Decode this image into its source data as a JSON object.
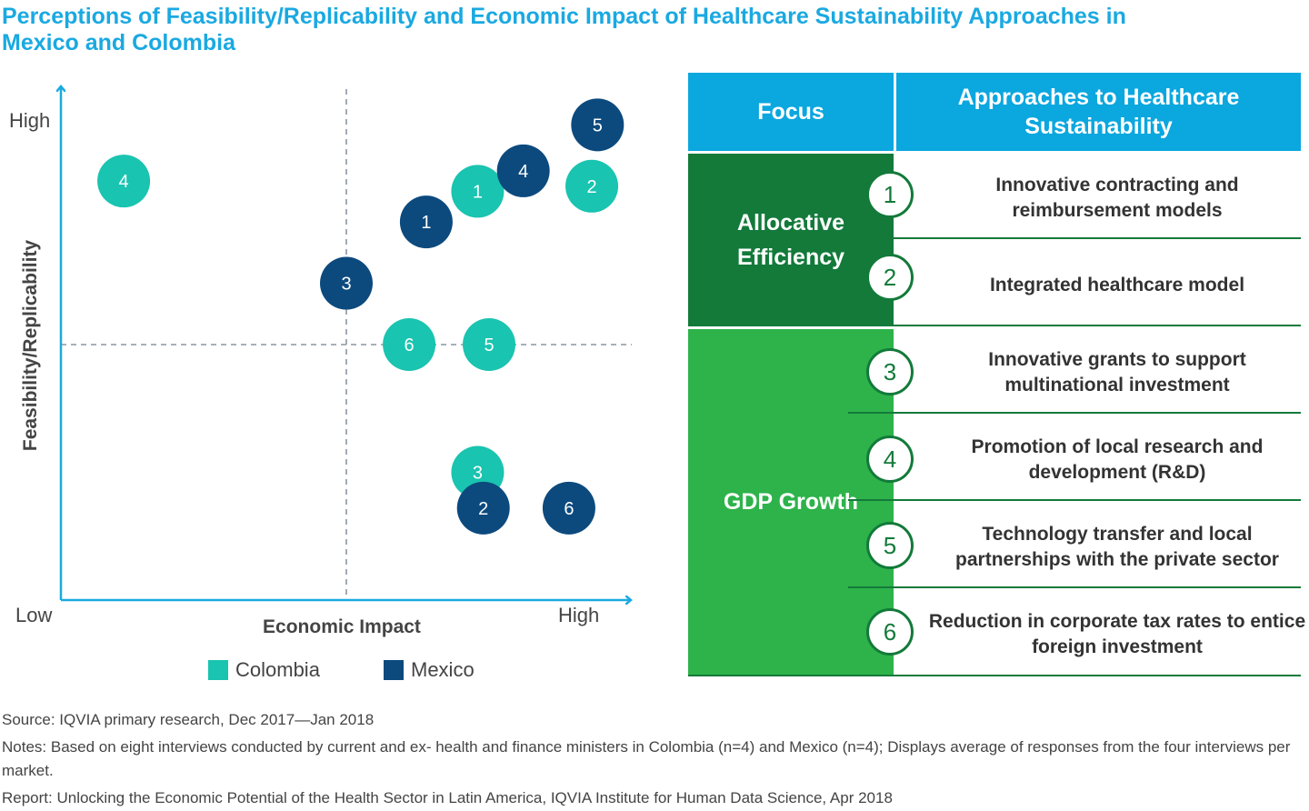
{
  "title": "Perceptions of Feasibility/Replicability and Economic Impact of Healthcare Sustainability Approaches in Mexico and Colombia",
  "chart_data": {
    "type": "scatter",
    "xlabel": "Economic Impact",
    "ylabel": "Feasibility/Replicability",
    "x_tick_labels": {
      "low": "Low",
      "high": "High"
    },
    "y_tick_labels": {
      "low": "Low",
      "high": "High"
    },
    "xlim": [
      0,
      10
    ],
    "ylim": [
      0,
      10
    ],
    "quadrant_split": {
      "x": 5,
      "y": 5
    },
    "legend_position": "bottom",
    "series": [
      {
        "name": "Colombia",
        "color": "#19c4b0",
        "points": [
          {
            "label": "1",
            "x": 7.3,
            "y": 8.0
          },
          {
            "label": "2",
            "x": 9.3,
            "y": 8.1
          },
          {
            "label": "3",
            "x": 7.3,
            "y": 2.5
          },
          {
            "label": "4",
            "x": 1.1,
            "y": 8.2
          },
          {
            "label": "5",
            "x": 7.5,
            "y": 5.0
          },
          {
            "label": "6",
            "x": 6.1,
            "y": 5.0
          }
        ]
      },
      {
        "name": "Mexico",
        "color": "#0c4a7e",
        "points": [
          {
            "label": "1",
            "x": 6.4,
            "y": 7.4
          },
          {
            "label": "2",
            "x": 7.4,
            "y": 1.8
          },
          {
            "label": "3",
            "x": 5.0,
            "y": 6.2
          },
          {
            "label": "4",
            "x": 8.1,
            "y": 8.4
          },
          {
            "label": "5",
            "x": 9.4,
            "y": 9.3
          },
          {
            "label": "6",
            "x": 8.9,
            "y": 1.8
          }
        ]
      }
    ]
  },
  "legend": {
    "colombia": "Colombia",
    "mexico": "Mexico"
  },
  "table": {
    "header_focus": "Focus",
    "header_approaches": "Approaches to Healthcare Sustainability",
    "focus_allocative": "Allocative Efficiency",
    "focus_gdp": "GDP Growth",
    "colors": {
      "header": "#0ba7df",
      "allocative": "#137a3a",
      "gdp": "#2db34a"
    },
    "approaches": [
      {
        "num": "1",
        "text": "Innovative contracting and reimbursement models"
      },
      {
        "num": "2",
        "text": "Integrated healthcare model"
      },
      {
        "num": "3",
        "text": "Innovative grants to support multinational investment"
      },
      {
        "num": "4",
        "text": "Promotion of local research and development (R&D)"
      },
      {
        "num": "5",
        "text": "Technology transfer and local partnerships with the private sector"
      },
      {
        "num": "6",
        "text": "Reduction in corporate tax rates to entice foreign investment"
      }
    ]
  },
  "footer": {
    "source": "Source: IQVIA primary research, Dec 2017—Jan 2018",
    "notes": "Notes: Based on eight interviews conducted by current and ex- health and finance ministers in Colombia (n=4) and Mexico (n=4); Displays average of responses from the four interviews per market.",
    "report": "Report: Unlocking the Economic Potential of the Health Sector in Latin America, IQVIA Institute for Human Data Science, Apr 2018"
  }
}
